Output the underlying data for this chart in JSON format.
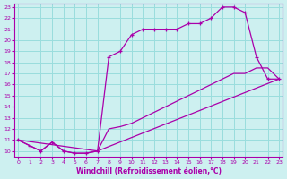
{
  "xlabel": "Windchill (Refroidissement éolien,°C)",
  "xlim": [
    0,
    23
  ],
  "ylim": [
    10,
    23
  ],
  "xticks": [
    0,
    1,
    2,
    3,
    4,
    5,
    6,
    7,
    8,
    9,
    10,
    11,
    12,
    13,
    14,
    15,
    16,
    17,
    18,
    19,
    20,
    21,
    22,
    23
  ],
  "yticks": [
    10,
    11,
    12,
    13,
    14,
    15,
    16,
    17,
    18,
    19,
    20,
    21,
    22,
    23
  ],
  "bg_color": "#cdf0f0",
  "line_color": "#aa00aa",
  "grid_color": "#99dddd",
  "line1_x": [
    0,
    1,
    2,
    3,
    4,
    5,
    6,
    7,
    8,
    9,
    10,
    11,
    12,
    13,
    14,
    15,
    16,
    17,
    18,
    19,
    20,
    21,
    22,
    23
  ],
  "line1_y": [
    11.0,
    10.5,
    10.0,
    10.8,
    10.0,
    9.8,
    9.8,
    10.0,
    18.5,
    19.0,
    20.5,
    21.0,
    21.0,
    21.0,
    21.0,
    21.5,
    21.5,
    22.0,
    23.0,
    23.0,
    22.5,
    18.5,
    16.5,
    16.5
  ],
  "line2_x": [
    0,
    1,
    2,
    3,
    4,
    5,
    6,
    7,
    23
  ],
  "line2_y": [
    11.0,
    10.5,
    10.0,
    10.8,
    10.0,
    9.8,
    9.8,
    10.0,
    16.5
  ],
  "line3_x": [
    0,
    7,
    8,
    9,
    10,
    11,
    12,
    13,
    14,
    15,
    16,
    17,
    18,
    19,
    20,
    21,
    22,
    23
  ],
  "line3_y": [
    11.0,
    10.0,
    12.0,
    12.2,
    12.5,
    13.0,
    13.5,
    14.0,
    14.5,
    15.0,
    15.5,
    16.0,
    16.5,
    17.0,
    17.0,
    17.5,
    17.5,
    16.5
  ]
}
